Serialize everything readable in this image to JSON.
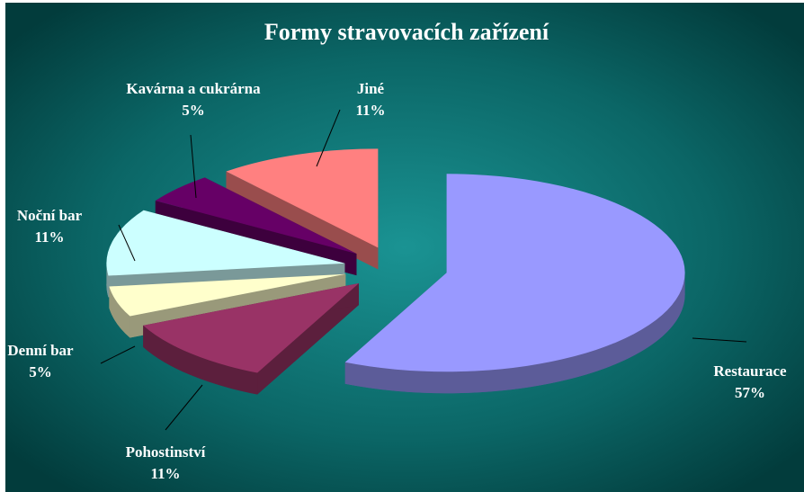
{
  "chart_data": {
    "type": "pie3d",
    "title": "Formy stravovacích zařízení",
    "categories": [
      "Restaurace",
      "Pohostinství",
      "Denní bar",
      "Noční bar",
      "Kavárna a cukrárna",
      "Jiné"
    ],
    "values": [
      57,
      11,
      5,
      11,
      5,
      11
    ],
    "value_labels": [
      "57%",
      "11%",
      "5%",
      "11%",
      "5%",
      "11%"
    ],
    "colors": [
      "#9999ff",
      "#993366",
      "#ffffcc",
      "#ccffff",
      "#660066",
      "#ff8080"
    ]
  }
}
